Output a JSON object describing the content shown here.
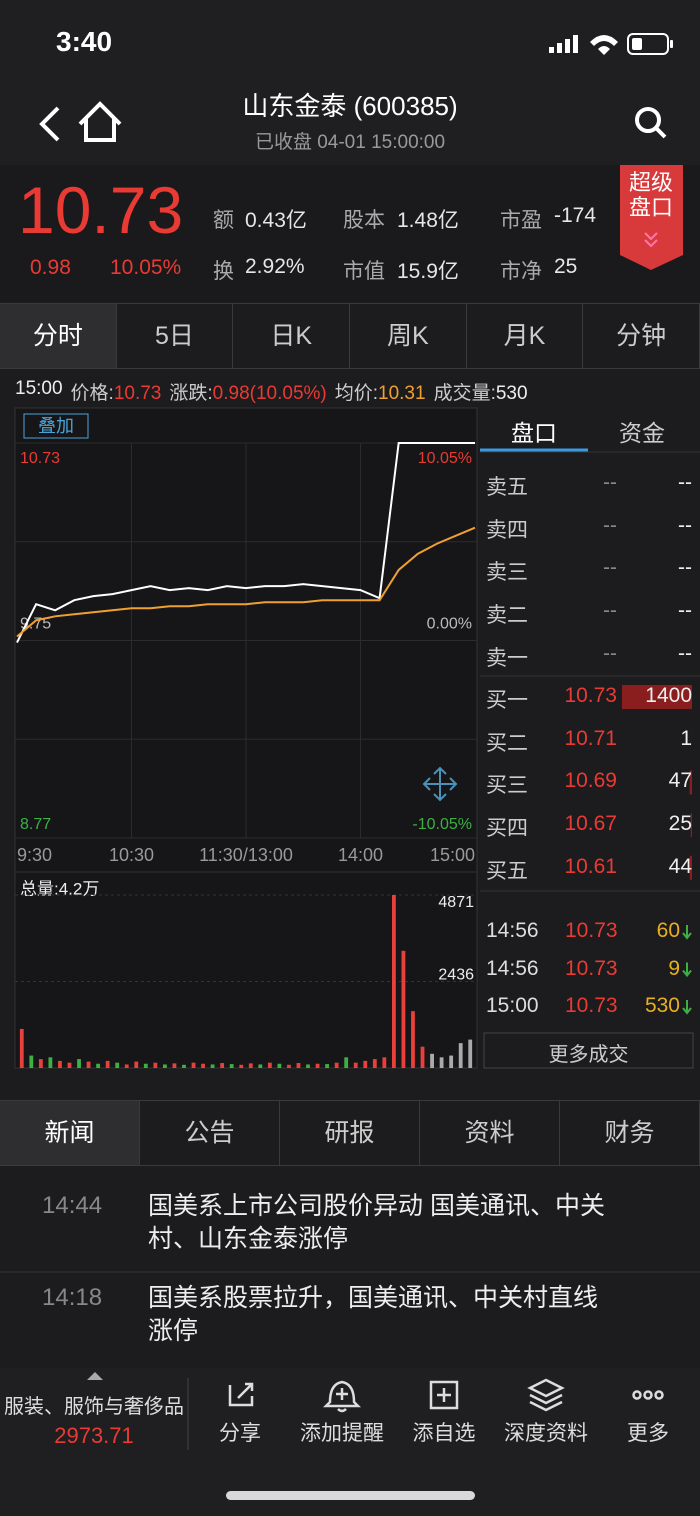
{
  "status_bar": {
    "time": "3:40"
  },
  "header": {
    "title": "山东金泰 (600385)",
    "subtitle": "已收盘 04-01 15:00:00"
  },
  "quote": {
    "price": "10.73",
    "change": "0.98",
    "change_pct": "10.05%",
    "badge": "超级盘口",
    "metrics": [
      {
        "label": "额",
        "value": "0.43亿"
      },
      {
        "label": "股本",
        "value": "1.48亿"
      },
      {
        "label": "市盈",
        "value": "-174"
      },
      {
        "label": "换",
        "value": "2.92%"
      },
      {
        "label": "市值",
        "value": "15.9亿"
      },
      {
        "label": "市净",
        "value": "25"
      }
    ]
  },
  "period_tabs": [
    "分时",
    "5日",
    "日K",
    "周K",
    "月K",
    "分钟"
  ],
  "info_line": {
    "time": "15:00",
    "items": [
      {
        "label": "价格:",
        "value": "10.73"
      },
      {
        "label": "涨跌:",
        "value": "0.98(10.05%)"
      },
      {
        "label": "均价:",
        "value": "10.31"
      },
      {
        "label": "成交量:",
        "value": "530"
      }
    ]
  },
  "overlay_button": "叠加",
  "chart_data": [
    {
      "type": "line",
      "ylim": [
        8.77,
        10.73
      ],
      "yticks": [
        8.77,
        9.75,
        10.73
      ],
      "y2lim": [
        -10.05,
        10.05
      ],
      "y2ticks": [
        {
          "value": -10.05,
          "label": "-10.05%"
        },
        {
          "value": 0,
          "label": "0.00%"
        },
        {
          "value": 10.05,
          "label": "10.05%"
        }
      ],
      "xticks": [
        "9:30",
        "10:30",
        "11:30/13:00",
        "14:00",
        "15:00"
      ],
      "x": [
        "9:30",
        "9:40",
        "9:50",
        "10:00",
        "10:10",
        "10:20",
        "10:30",
        "10:40",
        "10:50",
        "11:00",
        "11:10",
        "11:20",
        "11:30",
        "13:10",
        "13:20",
        "13:30",
        "13:40",
        "13:50",
        "14:00",
        "14:10",
        "14:20",
        "14:30",
        "14:40",
        "14:50",
        "15:00"
      ],
      "series": [
        {
          "name": "价格",
          "color": "#ffffff",
          "values": [
            9.74,
            9.93,
            9.9,
            9.95,
            9.97,
            9.98,
            10.0,
            10.02,
            10.0,
            10.01,
            10.0,
            10.02,
            10.01,
            10.02,
            10.02,
            10.03,
            10.02,
            10.01,
            10.0,
            9.96,
            10.73,
            10.73,
            10.73,
            10.73,
            10.73
          ]
        },
        {
          "name": "均价",
          "color": "#f0a030",
          "values": [
            9.77,
            9.85,
            9.87,
            9.88,
            9.89,
            9.9,
            9.91,
            9.91,
            9.92,
            9.92,
            9.93,
            9.93,
            9.93,
            9.94,
            9.94,
            9.94,
            9.95,
            9.95,
            9.95,
            9.95,
            10.1,
            10.18,
            10.23,
            10.27,
            10.31
          ]
        }
      ]
    },
    {
      "type": "bar",
      "title": "总量:4.2万",
      "ylim": [
        0,
        4871
      ],
      "yticks": [
        2436,
        4871
      ],
      "values": [
        1100,
        350,
        250,
        300,
        200,
        150,
        250,
        180,
        120,
        200,
        150,
        100,
        180,
        120,
        150,
        100,
        130,
        90,
        150,
        120,
        100,
        140,
        110,
        90,
        130,
        100,
        150,
        120,
        90,
        140,
        100,
        120,
        110,
        150,
        300,
        150,
        200,
        250,
        300,
        4871,
        3300,
        1600,
        600,
        400,
        300,
        350,
        700,
        800
      ],
      "colors": [
        "#e8403a",
        "#3cb043",
        "#e8403a",
        "#3cb043",
        "#e8403a",
        "#e8403a",
        "#3cb043",
        "#e8403a",
        "#3cb043",
        "#e8403a",
        "#3cb043",
        "#e8403a",
        "#e8403a",
        "#3cb043",
        "#e8403a",
        "#3cb043",
        "#e8403a",
        "#3cb043",
        "#e8403a",
        "#e8403a",
        "#3cb043",
        "#e8403a",
        "#3cb043",
        "#e8403a",
        "#e8403a",
        "#3cb043",
        "#e8403a",
        "#3cb043",
        "#e8403a",
        "#e8403a",
        "#3cb043",
        "#e8403a",
        "#3cb043",
        "#e8403a",
        "#3cb043",
        "#e8403a",
        "#e8403a",
        "#e8403a",
        "#e8403a",
        "#e8403a",
        "#e8403a",
        "#e8403a",
        "#e8403a",
        "#aaaaaa",
        "#aaaaaa",
        "#aaaaaa",
        "#aaaaaa",
        "#aaaaaa"
      ]
    }
  ],
  "order_book": {
    "tabs": [
      "盘口",
      "资金"
    ],
    "asks": [
      {
        "label": "卖五",
        "price": "--",
        "volume": "--"
      },
      {
        "label": "卖四",
        "price": "--",
        "volume": "--"
      },
      {
        "label": "卖三",
        "price": "--",
        "volume": "--"
      },
      {
        "label": "卖二",
        "price": "--",
        "volume": "--"
      },
      {
        "label": "卖一",
        "price": "--",
        "volume": "--"
      }
    ],
    "bids": [
      {
        "label": "买一",
        "price": 10.73,
        "volume": 1400
      },
      {
        "label": "买二",
        "price": 10.71,
        "volume": 1
      },
      {
        "label": "买三",
        "price": 10.69,
        "volume": 47
      },
      {
        "label": "买四",
        "price": 10.67,
        "volume": 25
      },
      {
        "label": "买五",
        "price": 10.61,
        "volume": 44
      }
    ],
    "trades": [
      {
        "time": "14:56",
        "price": 10.73,
        "volume": 60
      },
      {
        "time": "14:56",
        "price": 10.73,
        "volume": 9
      },
      {
        "time": "15:00",
        "price": 10.73,
        "volume": 530
      }
    ],
    "more_button": "更多成交"
  },
  "news_tabs": [
    "新闻",
    "公告",
    "研报",
    "资料",
    "财务"
  ],
  "news": [
    {
      "time": "14:44",
      "headline": "国美系上市公司股价异动 国美通讯、中关村、山东金泰涨停"
    },
    {
      "time": "14:18",
      "headline": "国美系股票拉升，国美通讯、中关村直线涨停"
    }
  ],
  "bottom_bar": {
    "sector": "服装、服饰与奢侈品",
    "sector_value": "2973.71",
    "actions": [
      "分享",
      "添加提醒",
      "添自选",
      "深度资料",
      "更多"
    ]
  }
}
